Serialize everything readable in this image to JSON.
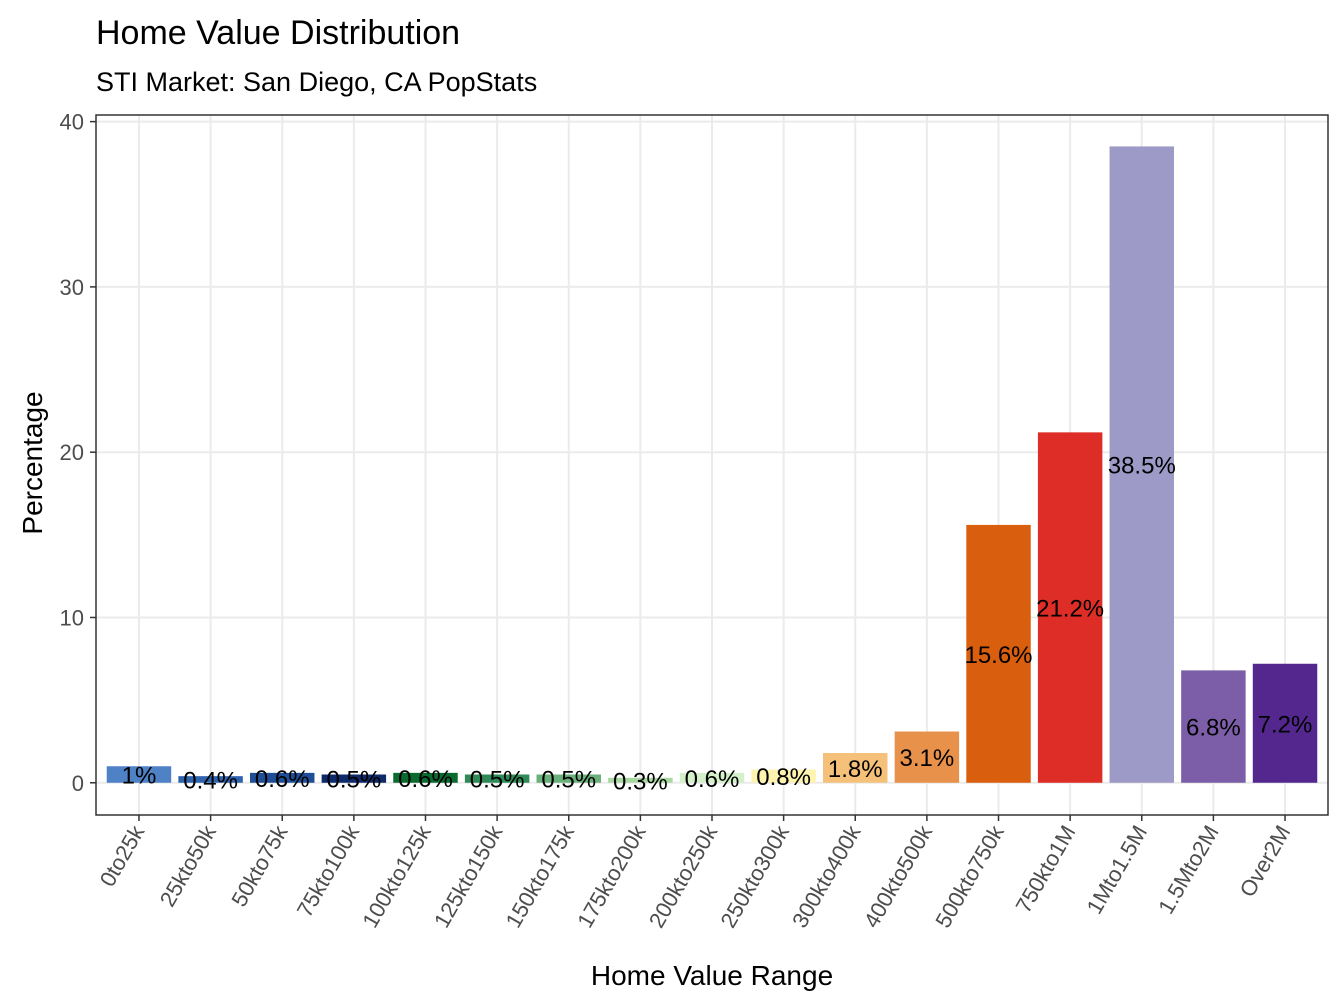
{
  "chart_data": {
    "type": "bar",
    "title": "Home Value Distribution",
    "subtitle": "STI Market: San Diego, CA PopStats",
    "x_label": "Home Value Range",
    "y_label": "Percentage",
    "categories": [
      "0to25k",
      "25kto50k",
      "50kto75k",
      "75kto100k",
      "100kto125k",
      "125kto150k",
      "150kto175k",
      "175kto200k",
      "200kto250k",
      "250kto300k",
      "300kto400k",
      "400kto500k",
      "500kto750k",
      "750kto1M",
      "1Mto1.5M",
      "1.5Mto2M",
      "Over2M"
    ],
    "values": [
      1,
      0.4,
      0.6,
      0.5,
      0.6,
      0.5,
      0.5,
      0.3,
      0.6,
      0.8,
      1.8,
      3.1,
      15.6,
      21.2,
      38.5,
      6.8,
      7.2
    ],
    "value_labels": [
      "1%",
      "0.4%",
      "0.6%",
      "0.5%",
      "0.6%",
      "0.5%",
      "0.5%",
      "0.3%",
      "0.6%",
      "0.8%",
      "1.8%",
      "3.1%",
      "15.6%",
      "21.2%",
      "38.5%",
      "6.8%",
      "7.2%"
    ],
    "colors": [
      "#4f81c7",
      "#2f63ad",
      "#1f4e96",
      "#0d2a6b",
      "#0a6b2f",
      "#2e8b57",
      "#6ab07a",
      "#a8d8a0",
      "#d3f0cb",
      "#fff3b0",
      "#f4c07a",
      "#e8914a",
      "#d95f0e",
      "#de2d26",
      "#9e9ac8",
      "#7b5ea7",
      "#54278f"
    ],
    "ylim": [
      -1.95,
      40.4
    ],
    "yticks": [
      0,
      10,
      20,
      30,
      40
    ],
    "grid": true
  }
}
